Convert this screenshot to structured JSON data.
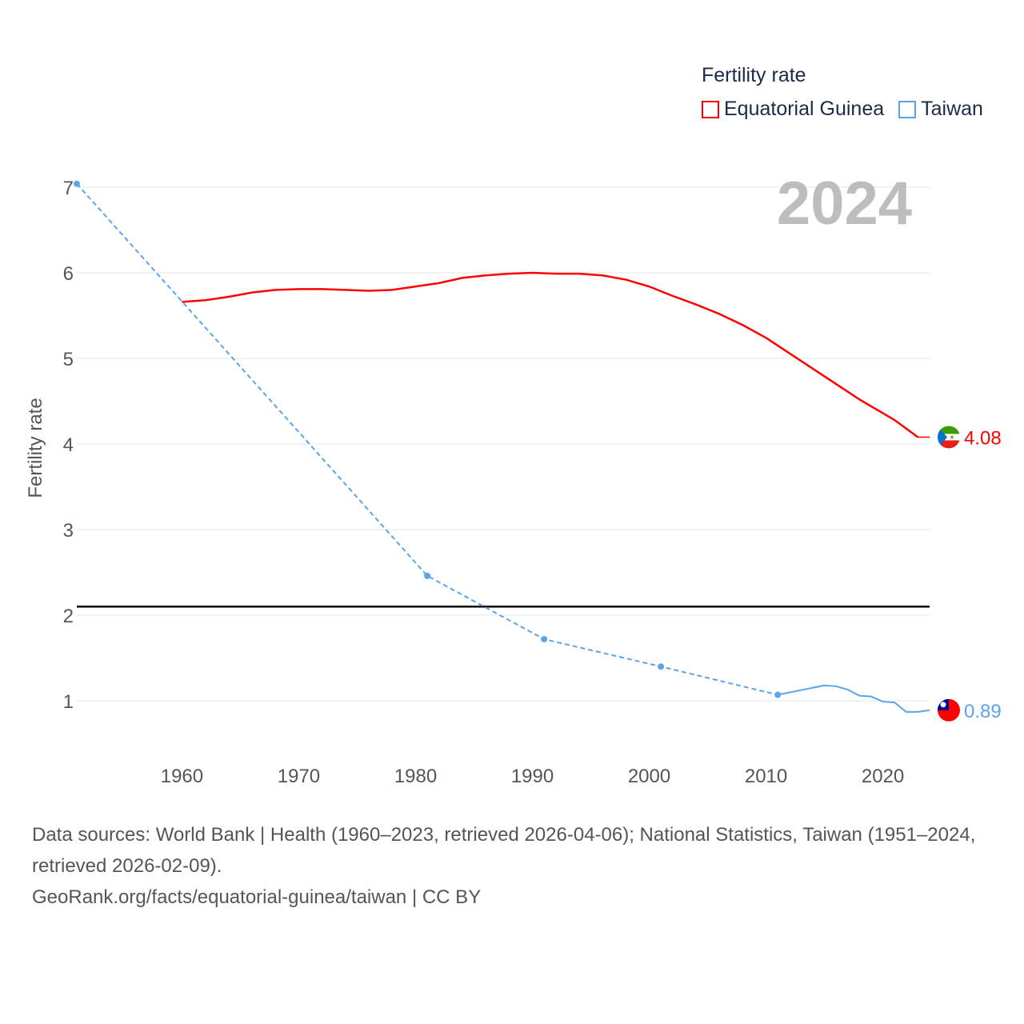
{
  "chart_data": {
    "type": "line",
    "legend_title": "Fertility rate",
    "ylabel": "Fertility rate",
    "year_label": "2024",
    "xlim": [
      1951,
      2024
    ],
    "ylim": [
      0,
      7
    ],
    "x_ticks": [
      1960,
      1970,
      1980,
      1990,
      2000,
      2010,
      2020
    ],
    "y_ticks": [
      1,
      2,
      3,
      4,
      5,
      6,
      7
    ],
    "grid": true,
    "legend_position": "top-right",
    "reference_line": {
      "value": 2.1,
      "color": "#000000"
    },
    "series": [
      {
        "name": "Equatorial Guinea",
        "color": "#ff0000",
        "end_label": "4.08",
        "x": [
          1960,
          1962,
          1964,
          1966,
          1968,
          1970,
          1972,
          1974,
          1976,
          1978,
          1980,
          1982,
          1984,
          1986,
          1988,
          1990,
          1992,
          1994,
          1996,
          1998,
          2000,
          2002,
          2004,
          2006,
          2008,
          2010,
          2012,
          2014,
          2016,
          2018,
          2020,
          2021,
          2023
        ],
        "y": [
          5.66,
          5.68,
          5.72,
          5.77,
          5.8,
          5.81,
          5.81,
          5.8,
          5.79,
          5.8,
          5.84,
          5.88,
          5.94,
          5.97,
          5.99,
          6.0,
          5.99,
          5.99,
          5.97,
          5.92,
          5.84,
          5.73,
          5.63,
          5.52,
          5.39,
          5.24,
          5.06,
          4.88,
          4.7,
          4.52,
          4.36,
          4.28,
          4.08
        ],
        "extend_to": 2024
      },
      {
        "name": "Taiwan",
        "color": "#5aa5ea",
        "end_label": "0.89",
        "x": [
          1951,
          1981,
          1991,
          2001,
          2011,
          2015,
          2016,
          2017,
          2018,
          2019,
          2020,
          2021,
          2022,
          2023,
          2024
        ],
        "y": [
          7.04,
          2.46,
          1.72,
          1.4,
          1.07,
          1.18,
          1.17,
          1.13,
          1.06,
          1.05,
          0.99,
          0.98,
          0.87,
          0.87,
          0.89
        ],
        "dashed_until": 2011
      }
    ]
  },
  "footer": {
    "sources": "Data sources: World Bank | Health (1960–2023, retrieved 2026-04-06); National Statistics, Taiwan (1951–2024, retrieved 2026-02-09).",
    "credit": "GeoRank.org/facts/equatorial-guinea/taiwan | CC BY"
  }
}
